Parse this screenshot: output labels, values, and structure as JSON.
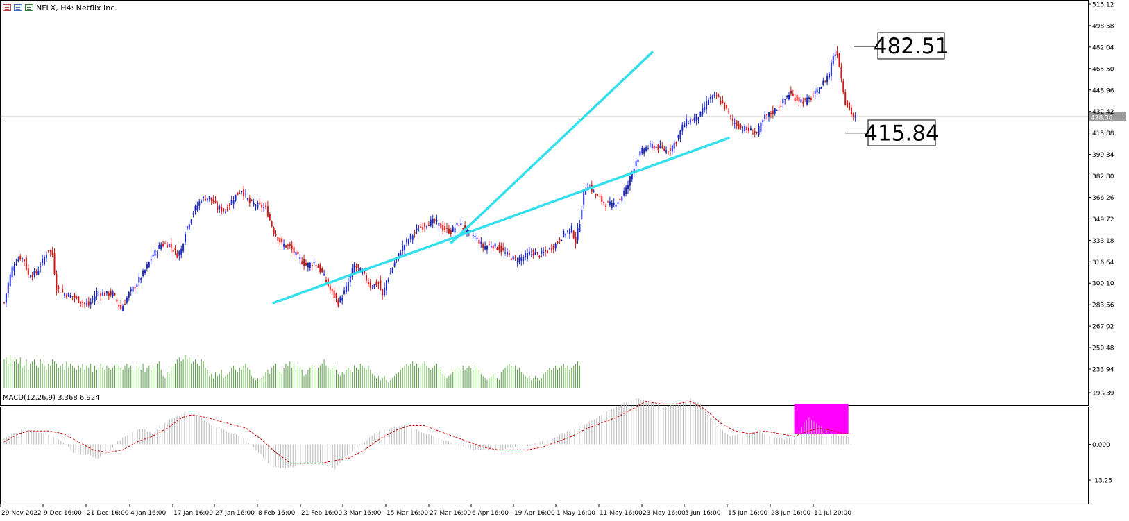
{
  "window": {
    "title": "NFLX, H4:  Netflix Inc."
  },
  "chart_data": [
    {
      "type": "candlestick",
      "symbol": "NFLX",
      "timeframe": "H4",
      "name": "Netflix Inc.",
      "price_axis": {
        "ticks": [
          515.12,
          498.58,
          482.04,
          465.5,
          448.96,
          432.42,
          415.88,
          399.34,
          382.8,
          366.26,
          349.72,
          333.18,
          316.64,
          300.1,
          283.56,
          267.02,
          250.48,
          233.94
        ],
        "range": [
          229.5,
          517.5
        ]
      },
      "time_axis": {
        "labels": [
          "29 Nov 2022",
          "9 Dec 16:00",
          "21 Dec 16:00",
          "4 Jan 16:00",
          "17 Jan 16:00",
          "27 Jan 16:00",
          "8 Feb 16:00",
          "21 Feb 16:00",
          "3 Mar 16:00",
          "15 Mar 16:00",
          "27 Mar 16:00",
          "6 Apr 16:00",
          "19 Apr 16:00",
          "1 May 16:00",
          "11 May 16:00",
          "23 May 16:00",
          "5 Jun 16:00",
          "15 Jun 16:00",
          "28 Jun 16:00",
          "11 Jul 20:00"
        ]
      },
      "current_price": {
        "value": 428.38,
        "label": "428.38"
      },
      "annotations": [
        {
          "label": "482.51",
          "value": 482.51
        },
        {
          "label": "415.84",
          "value": 415.84
        }
      ],
      "close_path_anchors": [
        [
          0,
          285
        ],
        [
          2,
          300
        ],
        [
          4,
          312
        ],
        [
          6,
          317
        ],
        [
          8,
          320
        ],
        [
          10,
          318
        ],
        [
          12,
          306
        ],
        [
          16,
          308
        ],
        [
          20,
          320
        ],
        [
          22,
          326
        ],
        [
          24,
          322
        ],
        [
          26,
          296
        ],
        [
          30,
          292
        ],
        [
          34,
          290
        ],
        [
          38,
          286
        ],
        [
          42,
          283
        ],
        [
          46,
          293
        ],
        [
          50,
          292
        ],
        [
          54,
          292
        ],
        [
          58,
          280
        ],
        [
          62,
          292
        ],
        [
          66,
          300
        ],
        [
          70,
          310
        ],
        [
          74,
          322
        ],
        [
          78,
          330
        ],
        [
          82,
          330
        ],
        [
          86,
          322
        ],
        [
          88,
          326
        ],
        [
          90,
          340
        ],
        [
          94,
          355
        ],
        [
          98,
          365
        ],
        [
          102,
          366
        ],
        [
          106,
          358
        ],
        [
          110,
          356
        ],
        [
          114,
          366
        ],
        [
          118,
          372
        ],
        [
          122,
          362
        ],
        [
          126,
          360
        ],
        [
          130,
          358
        ],
        [
          134,
          340
        ],
        [
          138,
          330
        ],
        [
          142,
          328
        ],
        [
          146,
          320
        ],
        [
          150,
          314
        ],
        [
          154,
          316
        ],
        [
          158,
          308
        ],
        [
          162,
          295
        ],
        [
          166,
          285
        ],
        [
          170,
          296
        ],
        [
          174,
          314
        ],
        [
          178,
          308
        ],
        [
          182,
          298
        ],
        [
          186,
          300
        ],
        [
          188,
          290
        ],
        [
          190,
          302
        ],
        [
          192,
          308
        ],
        [
          194,
          316
        ],
        [
          198,
          328
        ],
        [
          202,
          336
        ],
        [
          206,
          342
        ],
        [
          210,
          346
        ],
        [
          214,
          348
        ],
        [
          218,
          342
        ],
        [
          222,
          340
        ],
        [
          226,
          346
        ],
        [
          230,
          340
        ],
        [
          234,
          336
        ],
        [
          238,
          328
        ],
        [
          242,
          330
        ],
        [
          246,
          327
        ],
        [
          250,
          322
        ],
        [
          254,
          318
        ],
        [
          258,
          320
        ],
        [
          262,
          324
        ],
        [
          266,
          322
        ],
        [
          270,
          325
        ],
        [
          274,
          330
        ],
        [
          278,
          338
        ],
        [
          282,
          342
        ],
        [
          284,
          332
        ],
        [
          286,
          348
        ],
        [
          288,
          370
        ],
        [
          290,
          376
        ],
        [
          294,
          368
        ],
        [
          298,
          362
        ],
        [
          302,
          360
        ],
        [
          306,
          365
        ],
        [
          310,
          376
        ],
        [
          314,
          395
        ],
        [
          318,
          404
        ],
        [
          322,
          406
        ],
        [
          326,
          404
        ],
        [
          330,
          402
        ],
        [
          334,
          410
        ],
        [
          338,
          424
        ],
        [
          342,
          426
        ],
        [
          346,
          430
        ],
        [
          350,
          442
        ],
        [
          354,
          444
        ],
        [
          358,
          436
        ],
        [
          362,
          425
        ],
        [
          366,
          420
        ],
        [
          370,
          418
        ],
        [
          374,
          416
        ],
        [
          378,
          428
        ],
        [
          382,
          432
        ],
        [
          386,
          438
        ],
        [
          390,
          446
        ],
        [
          394,
          442
        ],
        [
          398,
          440
        ],
        [
          402,
          444
        ],
        [
          406,
          452
        ],
        [
          410,
          462
        ],
        [
          412,
          476
        ],
        [
          414,
          478
        ],
        [
          416,
          458
        ],
        [
          418,
          440
        ],
        [
          420,
          434
        ],
        [
          422,
          428
        ]
      ],
      "volume": {
        "color": "#5aa842",
        "values": [
          0.7,
          0.75,
          0.6,
          0.8,
          0.7,
          0.65,
          0.7,
          0.6,
          0.75,
          0.5,
          0.55,
          0.7,
          0.45,
          0.6,
          0.65,
          0.7,
          0.55,
          0.5,
          0.7,
          0.6,
          0.55,
          0.45,
          0.6,
          0.55,
          0.7,
          0.65,
          0.6,
          0.5,
          0.55,
          0.6,
          0.45,
          0.65,
          0.5,
          0.6,
          0.55,
          0.5,
          0.45,
          0.55,
          0.5,
          0.6,
          0.45,
          0.55,
          0.5,
          0.6,
          0.4,
          0.55,
          0.45,
          0.5,
          0.6,
          0.5,
          0.45,
          0.55,
          0.5,
          0.45,
          0.5,
          0.55,
          0.6,
          0.55,
          0.5,
          0.45,
          0.55,
          0.6,
          0.5,
          0.55,
          0.45,
          0.4,
          0.55,
          0.5,
          0.45,
          0.6,
          0.4,
          0.5,
          0.55,
          0.45,
          0.5,
          0.55,
          0.6,
          0.65,
          0.45,
          0.3,
          0.25,
          0.4,
          0.35,
          0.5,
          0.55,
          0.6,
          0.7,
          0.75,
          0.65,
          0.7,
          0.8,
          0.7,
          0.75,
          0.6,
          0.65,
          0.7,
          0.6,
          0.55,
          0.7,
          0.65,
          0.5,
          0.45,
          0.3,
          0.35,
          0.25,
          0.4,
          0.3,
          0.35,
          0.45,
          0.25,
          0.3,
          0.35,
          0.4,
          0.5,
          0.55,
          0.45,
          0.4,
          0.5,
          0.45,
          0.55,
          0.6,
          0.5,
          0.45,
          0.3,
          0.25,
          0.2,
          0.25,
          0.2,
          0.25,
          0.3,
          0.4,
          0.45,
          0.35,
          0.5,
          0.55,
          0.6,
          0.45,
          0.4,
          0.35,
          0.5,
          0.6,
          0.55,
          0.65,
          0.5,
          0.6,
          0.45,
          0.55,
          0.5,
          0.45,
          0.3,
          0.35,
          0.45,
          0.5,
          0.55,
          0.5,
          0.45,
          0.5,
          0.55,
          0.6,
          0.7,
          0.55,
          0.5,
          0.45,
          0.5,
          0.55,
          0.45,
          0.35,
          0.3,
          0.4,
          0.35,
          0.45,
          0.5,
          0.45,
          0.4,
          0.55,
          0.5,
          0.45,
          0.6,
          0.55,
          0.5,
          0.45,
          0.55,
          0.45,
          0.35,
          0.3,
          0.25,
          0.3,
          0.2,
          0.25,
          0.3,
          0.2,
          0.15,
          0.2,
          0.25,
          0.3,
          0.35,
          0.4,
          0.45,
          0.5,
          0.55,
          0.6,
          0.55,
          0.6,
          0.65,
          0.55,
          0.6,
          0.5,
          0.55,
          0.6,
          0.65,
          0.55,
          0.5,
          0.45,
          0.5,
          0.55,
          0.6,
          0.5,
          0.45,
          0.35,
          0.3,
          0.25,
          0.3,
          0.35,
          0.4,
          0.45,
          0.5,
          0.4,
          0.45,
          0.55,
          0.45,
          0.5,
          0.55,
          0.5,
          0.45,
          0.5,
          0.55,
          0.45,
          0.35,
          0.3,
          0.25,
          0.2,
          0.25,
          0.3,
          0.35,
          0.3,
          0.25,
          0.2,
          0.4,
          0.45,
          0.5,
          0.55,
          0.6,
          0.55,
          0.5,
          0.55,
          0.45,
          0.5,
          0.4,
          0.35,
          0.3,
          0.25,
          0.3,
          0.2,
          0.25,
          0.3,
          0.25,
          0.2,
          0.25,
          0.35,
          0.4,
          0.45,
          0.5,
          0.45,
          0.5,
          0.55,
          0.45,
          0.5,
          0.55,
          0.6,
          0.5,
          0.55,
          0.45,
          0.5,
          0.55,
          0.6,
          0.65,
          0.55
        ]
      },
      "trend_lines": {
        "color": "#33dfec",
        "lines": [
          {
            "from": {
              "bar": 134,
              "price": 285
            },
            "to": {
              "bar": 360,
              "price": 412
            }
          },
          {
            "from": {
              "bar": 222,
              "price": 331
            },
            "to": {
              "bar": 322,
              "price": 478
            }
          }
        ]
      },
      "colors": {
        "bull": "#1b26c9",
        "bear": "#d41616",
        "current_price_line": "#8c8c8c"
      }
    },
    {
      "type": "macd",
      "label": "MACD(12,26,9) 3.368 6.924",
      "params": "12,26,9",
      "main_value": 3.368,
      "signal_value": 6.924,
      "axis": {
        "ticks": [
          19.239,
          0.0,
          -13.25
        ],
        "range": [
          -15.5,
          20.5
        ]
      },
      "histogram_anchors": [
        [
          0,
          2
        ],
        [
          8,
          6
        ],
        [
          12,
          5
        ],
        [
          20,
          3
        ],
        [
          24,
          1
        ],
        [
          28,
          -3
        ],
        [
          34,
          -4
        ],
        [
          38,
          -5
        ],
        [
          42,
          -3
        ],
        [
          46,
          1
        ],
        [
          52,
          5
        ],
        [
          56,
          6
        ],
        [
          60,
          4
        ],
        [
          66,
          9
        ],
        [
          72,
          11
        ],
        [
          76,
          12
        ],
        [
          80,
          10
        ],
        [
          84,
          7
        ],
        [
          90,
          5
        ],
        [
          96,
          3
        ],
        [
          100,
          0
        ],
        [
          104,
          -4
        ],
        [
          108,
          -8
        ],
        [
          112,
          -9
        ],
        [
          118,
          -8
        ],
        [
          124,
          -7
        ],
        [
          128,
          -7
        ],
        [
          134,
          -9
        ],
        [
          138,
          -5
        ],
        [
          142,
          -2
        ],
        [
          146,
          1
        ],
        [
          150,
          4
        ],
        [
          156,
          6
        ],
        [
          162,
          7
        ],
        [
          168,
          5
        ],
        [
          174,
          3
        ],
        [
          180,
          1
        ],
        [
          186,
          -1
        ],
        [
          190,
          -2
        ],
        [
          194,
          -2
        ],
        [
          200,
          -2
        ],
        [
          206,
          -1
        ],
        [
          210,
          -1
        ],
        [
          214,
          0
        ],
        [
          218,
          1
        ],
        [
          222,
          2
        ],
        [
          226,
          4
        ],
        [
          232,
          6
        ],
        [
          238,
          9
        ],
        [
          244,
          12
        ],
        [
          250,
          15
        ],
        [
          256,
          17
        ],
        [
          262,
          16
        ],
        [
          268,
          14
        ],
        [
          274,
          15
        ],
        [
          278,
          17
        ],
        [
          282,
          15
        ],
        [
          286,
          10
        ],
        [
          290,
          6
        ],
        [
          294,
          3
        ],
        [
          300,
          4
        ],
        [
          306,
          5
        ],
        [
          310,
          3
        ],
        [
          316,
          2
        ],
        [
          320,
          2
        ],
        [
          324,
          8
        ],
        [
          326,
          10
        ],
        [
          330,
          7
        ],
        [
          336,
          4
        ],
        [
          340,
          3
        ]
      ],
      "signal_anchors": [
        [
          0,
          1
        ],
        [
          6,
          4
        ],
        [
          10,
          5
        ],
        [
          18,
          5
        ],
        [
          24,
          4
        ],
        [
          30,
          1
        ],
        [
          36,
          -2
        ],
        [
          42,
          -3
        ],
        [
          48,
          -2
        ],
        [
          54,
          1
        ],
        [
          60,
          3
        ],
        [
          66,
          6
        ],
        [
          72,
          10
        ],
        [
          76,
          11
        ],
        [
          82,
          10
        ],
        [
          90,
          8
        ],
        [
          98,
          6
        ],
        [
          104,
          2
        ],
        [
          110,
          -3
        ],
        [
          116,
          -7
        ],
        [
          122,
          -7
        ],
        [
          128,
          -7
        ],
        [
          134,
          -6
        ],
        [
          140,
          -5
        ],
        [
          146,
          -2
        ],
        [
          152,
          2
        ],
        [
          158,
          5
        ],
        [
          164,
          7
        ],
        [
          170,
          7
        ],
        [
          176,
          5
        ],
        [
          182,
          3
        ],
        [
          188,
          1
        ],
        [
          194,
          -1
        ],
        [
          200,
          -2
        ],
        [
          206,
          -2
        ],
        [
          212,
          -2
        ],
        [
          218,
          -1
        ],
        [
          224,
          1
        ],
        [
          230,
          3
        ],
        [
          236,
          6
        ],
        [
          242,
          8
        ],
        [
          248,
          10
        ],
        [
          254,
          13
        ],
        [
          260,
          16
        ],
        [
          266,
          15
        ],
        [
          272,
          15
        ],
        [
          278,
          16
        ],
        [
          284,
          13
        ],
        [
          290,
          8
        ],
        [
          296,
          5
        ],
        [
          302,
          4
        ],
        [
          308,
          5
        ],
        [
          314,
          4
        ],
        [
          320,
          3
        ],
        [
          326,
          5
        ],
        [
          330,
          6
        ],
        [
          336,
          5
        ],
        [
          340,
          4
        ]
      ],
      "signal_color": "#cc0000",
      "histogram_color": "#b9b9b9",
      "highlight": {
        "color": "#ff00ff",
        "bar_from": 320,
        "bar_to": 338,
        "value_top": 15,
        "value_bottom": 4
      }
    }
  ]
}
